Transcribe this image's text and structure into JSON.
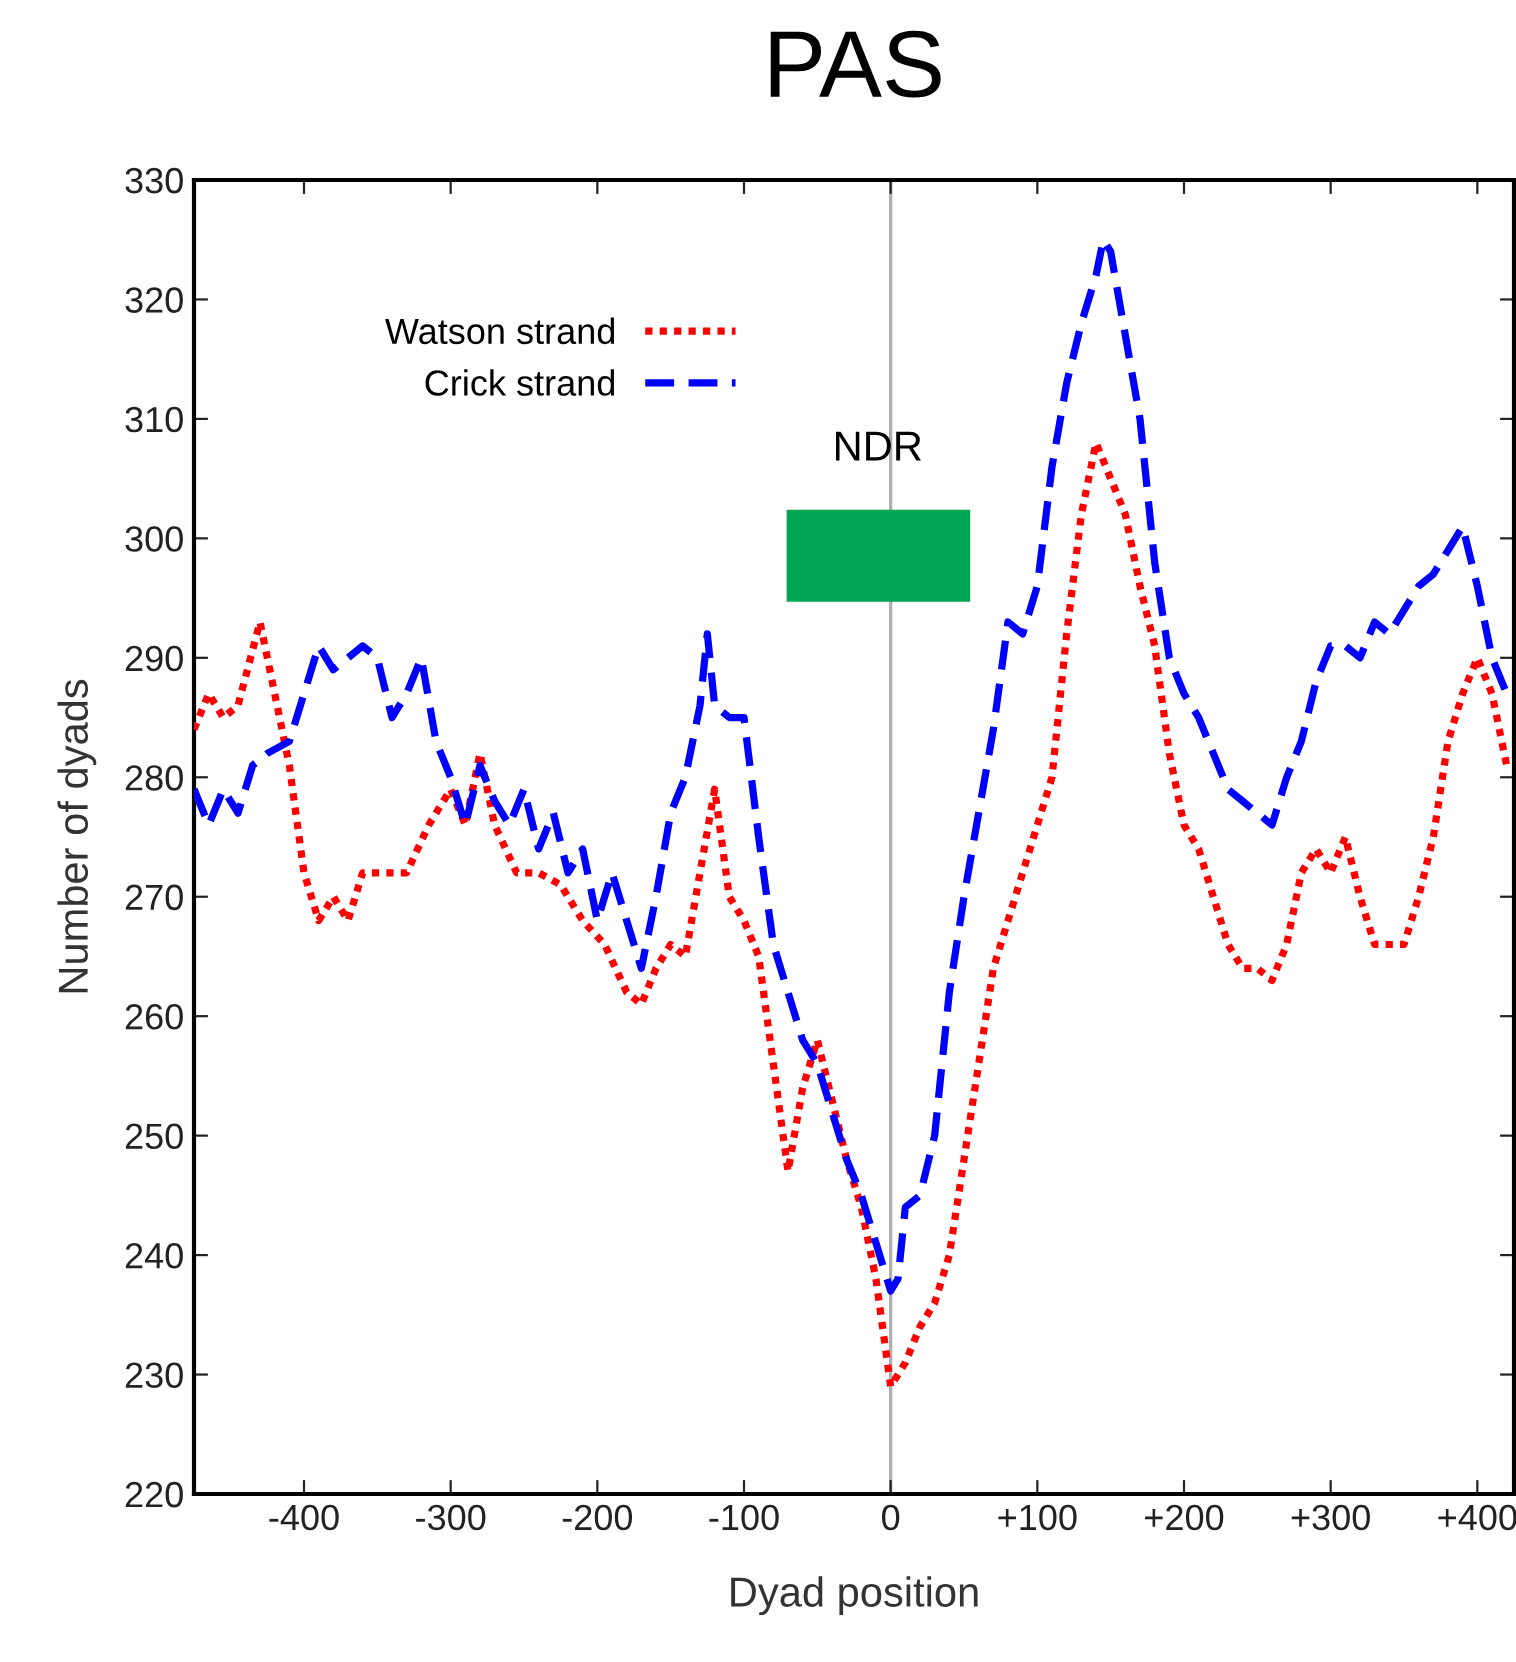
{
  "chart_data": {
    "type": "line",
    "title": "PAS",
    "xlabel": "Dyad position",
    "ylabel": "Number of dyads",
    "xlim": [
      -475,
      425
    ],
    "ylim": [
      220,
      330
    ],
    "xticks": [
      {
        "value": -400,
        "label": "-400"
      },
      {
        "value": -300,
        "label": "-300"
      },
      {
        "value": -200,
        "label": "-200"
      },
      {
        "value": -100,
        "label": "-100"
      },
      {
        "value": 0,
        "label": "0"
      },
      {
        "value": 100,
        "label": "+100"
      },
      {
        "value": 200,
        "label": "+200"
      },
      {
        "value": 300,
        "label": "+300"
      },
      {
        "value": 400,
        "label": "+400"
      }
    ],
    "yticks": [
      220,
      230,
      240,
      250,
      260,
      270,
      280,
      290,
      300,
      310,
      320,
      330
    ],
    "grid": false,
    "legend": "top left",
    "marker": "none",
    "ref_lines": [
      {
        "axis": "x",
        "value": 0,
        "color": "#b0b0b0",
        "line_style": "solid"
      }
    ],
    "annotations": [
      "NDR"
    ],
    "series": [
      {
        "name": "Watson strand",
        "color": "#ff0000",
        "line_style": "dotted",
        "x": [
          -475,
          -465,
          -455,
          -445,
          -430,
          -420,
          -410,
          -400,
          -390,
          -380,
          -370,
          -360,
          -345,
          -330,
          -315,
          -300,
          -290,
          -280,
          -270,
          -255,
          -240,
          -225,
          -210,
          -195,
          -180,
          -170,
          -160,
          -150,
          -140,
          -130,
          -120,
          -110,
          -100,
          -90,
          -80,
          -70,
          -60,
          -50,
          -40,
          -30,
          -20,
          -10,
          0,
          10,
          20,
          30,
          40,
          50,
          60,
          70,
          80,
          90,
          100,
          110,
          120,
          130,
          140,
          150,
          160,
          170,
          180,
          190,
          200,
          210,
          220,
          230,
          240,
          250,
          260,
          270,
          280,
          290,
          300,
          310,
          320,
          330,
          340,
          350,
          360,
          370,
          380,
          390,
          400,
          410,
          420
        ],
        "values": [
          284,
          287,
          285,
          286,
          293,
          287,
          281,
          272,
          268,
          270,
          268,
          272,
          272,
          272,
          276,
          279,
          276,
          282,
          276,
          272,
          272,
          271,
          268,
          266,
          262,
          261,
          264,
          266,
          265,
          272,
          279,
          270,
          268,
          265,
          256,
          247,
          254,
          258,
          253,
          248,
          244,
          238,
          229,
          231,
          234,
          236,
          240,
          248,
          256,
          264,
          268,
          272,
          276,
          280,
          292,
          302,
          308,
          305,
          302,
          296,
          291,
          282,
          276,
          274,
          270,
          266,
          264,
          264,
          263,
          266,
          272,
          274,
          272,
          275,
          270,
          266,
          266,
          266,
          270,
          275,
          283,
          287,
          290,
          287,
          281
        ]
      },
      {
        "name": "Crick strand",
        "color": "#0000ff",
        "line_style": "dashed",
        "x": [
          -475,
          -465,
          -455,
          -445,
          -435,
          -425,
          -410,
          -400,
          -390,
          -380,
          -370,
          -360,
          -350,
          -340,
          -330,
          -320,
          -310,
          -300,
          -290,
          -280,
          -270,
          -260,
          -250,
          -240,
          -230,
          -220,
          -210,
          -200,
          -190,
          -180,
          -170,
          -160,
          -150,
          -140,
          -130,
          -125,
          -120,
          -110,
          -100,
          -90,
          -80,
          -70,
          -60,
          -50,
          -40,
          -30,
          -20,
          -10,
          0,
          5,
          10,
          20,
          30,
          40,
          50,
          60,
          70,
          80,
          90,
          100,
          110,
          120,
          130,
          140,
          145,
          150,
          160,
          170,
          180,
          190,
          200,
          210,
          220,
          230,
          240,
          260,
          270,
          280,
          290,
          300,
          310,
          320,
          330,
          340,
          350,
          360,
          370,
          380,
          390,
          400,
          410,
          420
        ],
        "values": [
          279,
          276,
          279,
          277,
          281,
          282,
          283,
          287,
          291,
          289,
          290,
          291,
          290,
          285,
          287,
          290,
          283,
          280,
          276,
          281,
          278,
          276,
          279,
          274,
          277,
          272,
          274,
          268,
          272,
          268,
          264,
          270,
          277,
          280,
          286,
          292,
          286,
          285,
          285,
          275,
          266,
          262,
          258,
          256,
          252,
          248,
          245,
          241,
          237,
          238,
          244,
          245,
          250,
          262,
          270,
          277,
          284,
          293,
          292,
          296,
          306,
          313,
          318,
          322,
          325,
          324,
          317,
          310,
          298,
          290,
          287,
          285,
          282,
          279,
          278,
          276,
          280,
          283,
          288,
          291,
          291,
          290,
          293,
          292,
          294,
          296,
          297,
          299,
          301,
          296,
          290,
          287
        ]
      }
    ]
  }
}
